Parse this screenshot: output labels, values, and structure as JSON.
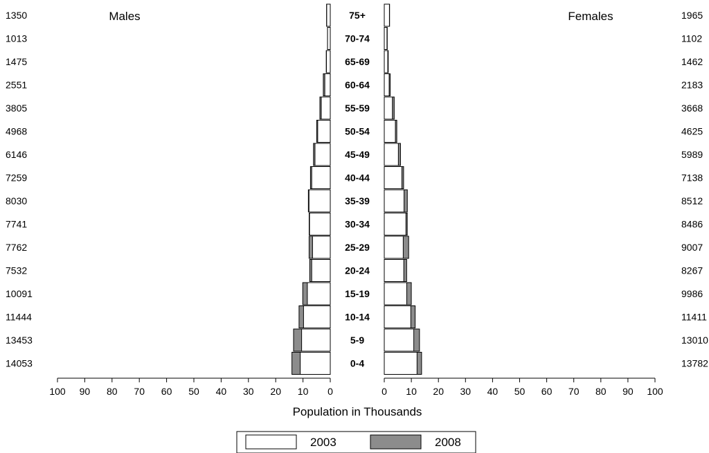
{
  "chart_data": {
    "type": "bar",
    "subtype": "population-pyramid",
    "unit": "Thousands",
    "xlabel": "Population in Thousands",
    "left_title": "Males",
    "right_title": "Females",
    "xlim": [
      0,
      100
    ],
    "xticks": [
      "100",
      "90",
      "80",
      "70",
      "60",
      "50",
      "40",
      "30",
      "20",
      "10",
      "0"
    ],
    "xticks_right": [
      "0",
      "10",
      "20",
      "30",
      "40",
      "50",
      "60",
      "70",
      "80",
      "90",
      "100"
    ],
    "categories": [
      "75+",
      "70-74",
      "65-69",
      "60-64",
      "55-59",
      "50-54",
      "45-49",
      "40-44",
      "35-39",
      "30-34",
      "25-29",
      "20-24",
      "15-19",
      "10-14",
      "5-9",
      "0-4"
    ],
    "male_labels": [
      "1350",
      "1013",
      "1475",
      "2551",
      "3805",
      "4968",
      "6146",
      "7259",
      "8030",
      "7741",
      "7762",
      "7532",
      "10091",
      "11444",
      "13453",
      "14053"
    ],
    "female_labels": [
      "1965",
      "1102",
      "1462",
      "2183",
      "3668",
      "4625",
      "5989",
      "7138",
      "8512",
      "8486",
      "9007",
      "8267",
      "9986",
      "11411",
      "13010",
      "13782"
    ],
    "series": [
      {
        "name": "2003",
        "color": "#ffffff",
        "males": [
          1.3,
          1.0,
          1.4,
          2.0,
          3.3,
          4.6,
          5.6,
          6.8,
          7.8,
          7.6,
          6.5,
          6.8,
          8.4,
          9.8,
          10.5,
          11.0
        ],
        "females": [
          1.9,
          1.0,
          1.3,
          1.8,
          3.0,
          4.1,
          5.2,
          6.5,
          7.3,
          8.0,
          7.0,
          7.2,
          8.3,
          9.8,
          10.9,
          12.1
        ]
      },
      {
        "name": "2008",
        "color": "#8c8c8c",
        "males": [
          1.35,
          1.013,
          1.475,
          2.551,
          3.805,
          4.968,
          6.146,
          7.259,
          8.03,
          7.741,
          7.762,
          7.532,
          10.091,
          11.444,
          13.453,
          14.053
        ],
        "females": [
          1.965,
          1.102,
          1.462,
          2.183,
          3.668,
          4.625,
          5.989,
          7.138,
          8.512,
          8.486,
          9.007,
          8.267,
          9.986,
          11.411,
          13.01,
          13.782
        ]
      }
    ],
    "legend_position": "bottom"
  }
}
